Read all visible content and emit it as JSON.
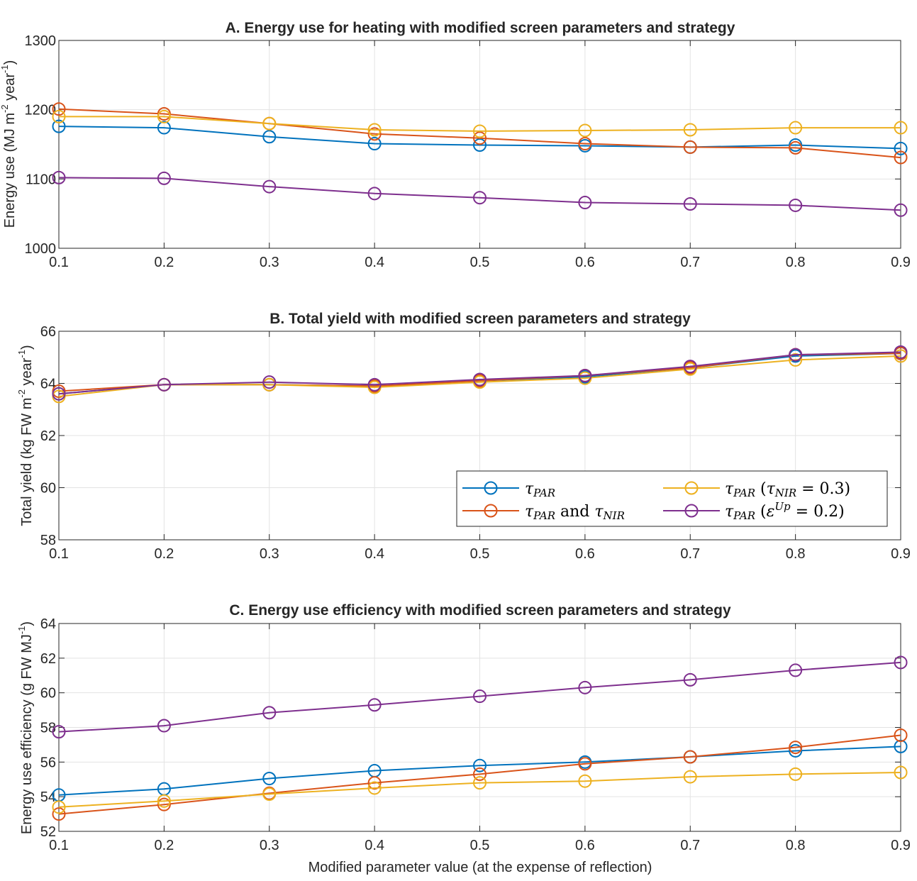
{
  "colors": {
    "tau_par": "#0072BD",
    "tau_par_nir": "#D95319",
    "tau_par_nir03": "#EDB120",
    "tau_par_eps": "#7E2F8E"
  },
  "legend": [
    {
      "key": "tau_par",
      "label": "τPAR"
    },
    {
      "key": "tau_par_nir",
      "label": "τPAR and τNIR"
    },
    {
      "key": "tau_par_nir03",
      "label": "τPAR (τNIR = 0.3)"
    },
    {
      "key": "tau_par_eps",
      "label": "τPAR (εUp = 0.2)"
    }
  ],
  "xlabel": "Modified parameter value (at the expense of reflection)",
  "chart_data": [
    {
      "type": "line",
      "title": "A. Energy use for heating with modified screen parameters and strategy",
      "ylabel": "Energy use (MJ m-2 year-1)",
      "x": [
        0.1,
        0.2,
        0.3,
        0.4,
        0.5,
        0.6,
        0.7,
        0.8,
        0.9
      ],
      "xticks": [
        "0.1",
        "0.2",
        "0.3",
        "0.4",
        "0.5",
        "0.6",
        "0.7",
        "0.8",
        "0.9"
      ],
      "ylim": [
        1000,
        1300
      ],
      "yticks": [
        1000,
        1100,
        1200,
        1300
      ],
      "grid": true,
      "series": [
        {
          "key": "tau_par",
          "values": [
            1176,
            1174,
            1161,
            1151,
            1149,
            1148,
            1146,
            1149,
            1144
          ]
        },
        {
          "key": "tau_par_nir",
          "values": [
            1201,
            1194,
            1180,
            1165,
            1159,
            1151,
            1146,
            1145,
            1131
          ]
        },
        {
          "key": "tau_par_nir03",
          "values": [
            1190,
            1190,
            1180,
            1171,
            1169,
            1170,
            1171,
            1174,
            1174
          ]
        },
        {
          "key": "tau_par_eps",
          "values": [
            1102,
            1101,
            1089,
            1079,
            1073,
            1066,
            1064,
            1062,
            1055
          ]
        }
      ]
    },
    {
      "type": "line",
      "title": "B. Total yield with modified screen parameters and strategy",
      "ylabel": "Total yield (kg FW m-2 year-1)",
      "x": [
        0.1,
        0.2,
        0.3,
        0.4,
        0.5,
        0.6,
        0.7,
        0.8,
        0.9
      ],
      "xticks": [
        "0.1",
        "0.2",
        "0.3",
        "0.4",
        "0.5",
        "0.6",
        "0.7",
        "0.8",
        "0.9"
      ],
      "ylim": [
        58,
        66
      ],
      "yticks": [
        58,
        60,
        62,
        64,
        66
      ],
      "grid": true,
      "legend_position": "bottom-right",
      "series": [
        {
          "key": "tau_par",
          "values": [
            63.6,
            63.95,
            63.95,
            63.9,
            64.1,
            64.25,
            64.6,
            65.05,
            65.15
          ]
        },
        {
          "key": "tau_par_nir",
          "values": [
            63.7,
            63.95,
            63.95,
            63.9,
            64.1,
            64.3,
            64.6,
            65.1,
            65.15
          ]
        },
        {
          "key": "tau_par_nir03",
          "values": [
            63.5,
            63.95,
            63.95,
            63.85,
            64.05,
            64.2,
            64.55,
            64.9,
            65.05
          ]
        },
        {
          "key": "tau_par_eps",
          "values": [
            63.6,
            63.95,
            64.05,
            63.95,
            64.15,
            64.3,
            64.65,
            65.1,
            65.2
          ]
        }
      ]
    },
    {
      "type": "line",
      "title": "C. Energy use efficiency with modified screen parameters and strategy",
      "ylabel": "Energy use efficiency (g FW MJ-1)",
      "x": [
        0.1,
        0.2,
        0.3,
        0.4,
        0.5,
        0.6,
        0.7,
        0.8,
        0.9
      ],
      "xticks": [
        "0.1",
        "0.2",
        "0.3",
        "0.4",
        "0.5",
        "0.6",
        "0.7",
        "0.8",
        "0.9"
      ],
      "ylim": [
        52,
        64
      ],
      "yticks": [
        52,
        54,
        56,
        58,
        60,
        62,
        64
      ],
      "grid": true,
      "series": [
        {
          "key": "tau_par",
          "values": [
            54.1,
            54.45,
            55.05,
            55.5,
            55.8,
            56.0,
            56.3,
            56.65,
            56.9
          ]
        },
        {
          "key": "tau_par_nir",
          "values": [
            53.0,
            53.55,
            54.2,
            54.8,
            55.3,
            55.9,
            56.3,
            56.85,
            57.55
          ]
        },
        {
          "key": "tau_par_nir03",
          "values": [
            53.4,
            53.75,
            54.15,
            54.5,
            54.8,
            54.9,
            55.15,
            55.3,
            55.4
          ]
        },
        {
          "key": "tau_par_eps",
          "values": [
            57.75,
            58.1,
            58.85,
            59.3,
            59.8,
            60.3,
            60.75,
            61.3,
            61.75
          ]
        }
      ]
    }
  ]
}
